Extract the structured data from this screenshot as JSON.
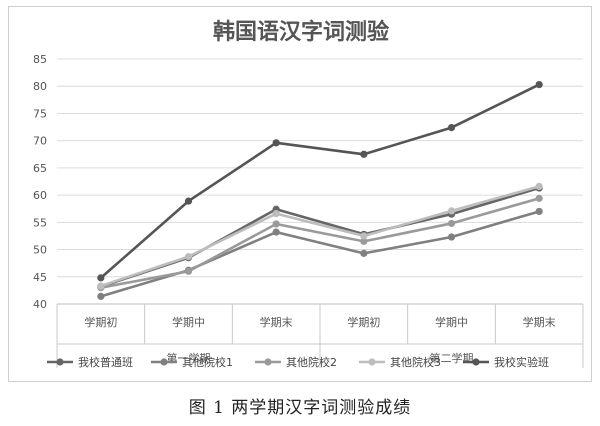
{
  "caption": "图 1 两学期汉字词测验成绩",
  "chart_data": {
    "type": "line",
    "title": "韩国语汉字词测验",
    "xlabel": "",
    "ylabel": "",
    "ylim": [
      40,
      85
    ],
    "yticks": [
      40,
      45,
      50,
      55,
      60,
      65,
      70,
      75,
      80,
      85
    ],
    "grid": true,
    "legend_position": "bottom",
    "categories": [
      "学期初",
      "学期中",
      "学期末",
      "学期初",
      "学期中",
      "学期末"
    ],
    "groups": [
      {
        "label": "第一学期",
        "span": [
          0,
          2
        ]
      },
      {
        "label": "第二学期",
        "span": [
          3,
          5
        ]
      }
    ],
    "series": [
      {
        "name": "我校普通班",
        "color": "#666666",
        "values": [
          43.2,
          48.5,
          57.4,
          52.8,
          56.5,
          61.3
        ]
      },
      {
        "name": "其他院校1",
        "color": "#808080",
        "values": [
          41.4,
          46.2,
          53.2,
          49.3,
          52.3,
          57.0
        ]
      },
      {
        "name": "其他院校2",
        "color": "#9a9a9a",
        "values": [
          43.0,
          46.0,
          54.7,
          51.5,
          54.8,
          59.4
        ]
      },
      {
        "name": "其他院校3",
        "color": "#bdbdbd",
        "values": [
          43.3,
          48.7,
          56.6,
          52.5,
          57.1,
          61.6
        ]
      },
      {
        "name": "我校实验班",
        "color": "#555555",
        "values": [
          44.8,
          58.9,
          69.6,
          67.5,
          72.4,
          80.3
        ]
      }
    ]
  }
}
